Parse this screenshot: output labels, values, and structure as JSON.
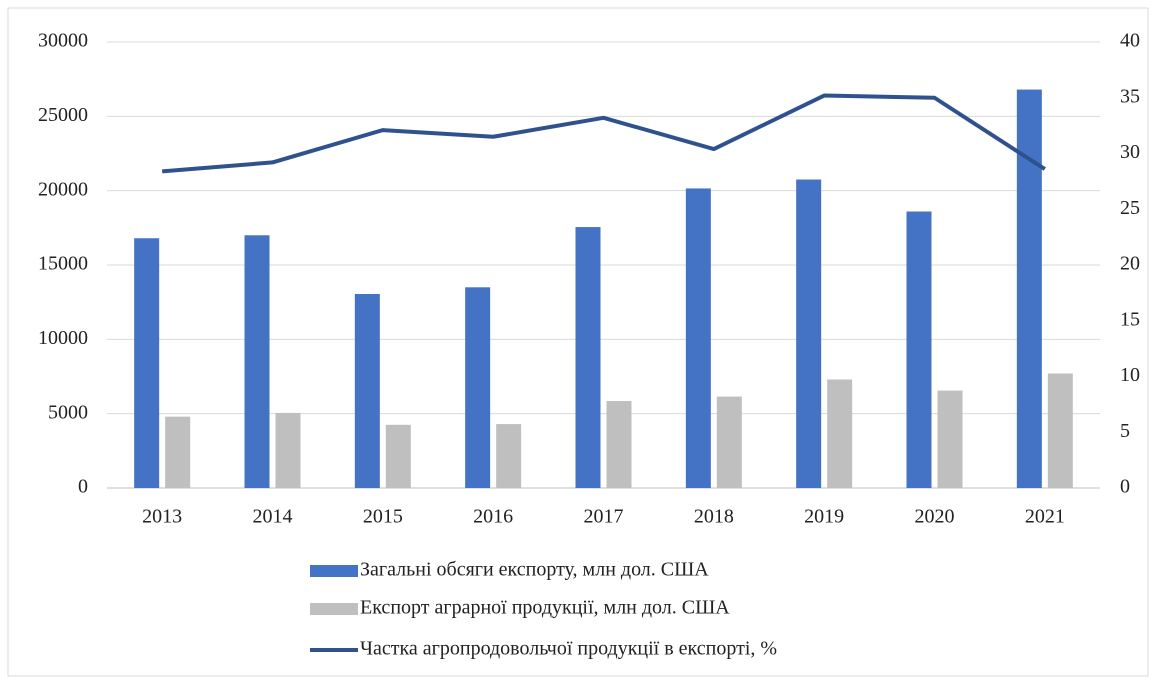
{
  "chart_data": {
    "type": "bar-line",
    "categories": [
      "2013",
      "2014",
      "2015",
      "2016",
      "2017",
      "2018",
      "2019",
      "2020",
      "2021"
    ],
    "series": [
      {
        "name": "Загальні обсяги експорту, млн дол. США",
        "color": "#4472c4",
        "type": "bar",
        "values": [
          16800,
          17000,
          13050,
          13500,
          17550,
          20150,
          20750,
          18600,
          26800
        ]
      },
      {
        "name": "Експорт аграрної продукції, млн дол. США",
        "color": "#bfbfbf",
        "type": "bar",
        "values": [
          4800,
          5050,
          4250,
          4300,
          5850,
          6150,
          7300,
          6550,
          7700
        ]
      },
      {
        "name": "Частка агропродовольчої продукції в експорті, %",
        "color": "#2f528f",
        "type": "line",
        "axis": "y2",
        "values": [
          28.4,
          29.2,
          32.1,
          31.5,
          33.2,
          30.4,
          35.2,
          35.0,
          28.6
        ]
      }
    ],
    "ylim": [
      0,
      30000
    ],
    "yticks": [
      0,
      5000,
      10000,
      15000,
      20000,
      25000,
      30000
    ],
    "y2lim": [
      0,
      40
    ],
    "y2ticks": [
      0,
      5,
      10,
      15,
      20,
      25,
      30,
      35,
      40
    ],
    "grid": true,
    "legend": "bottom"
  }
}
